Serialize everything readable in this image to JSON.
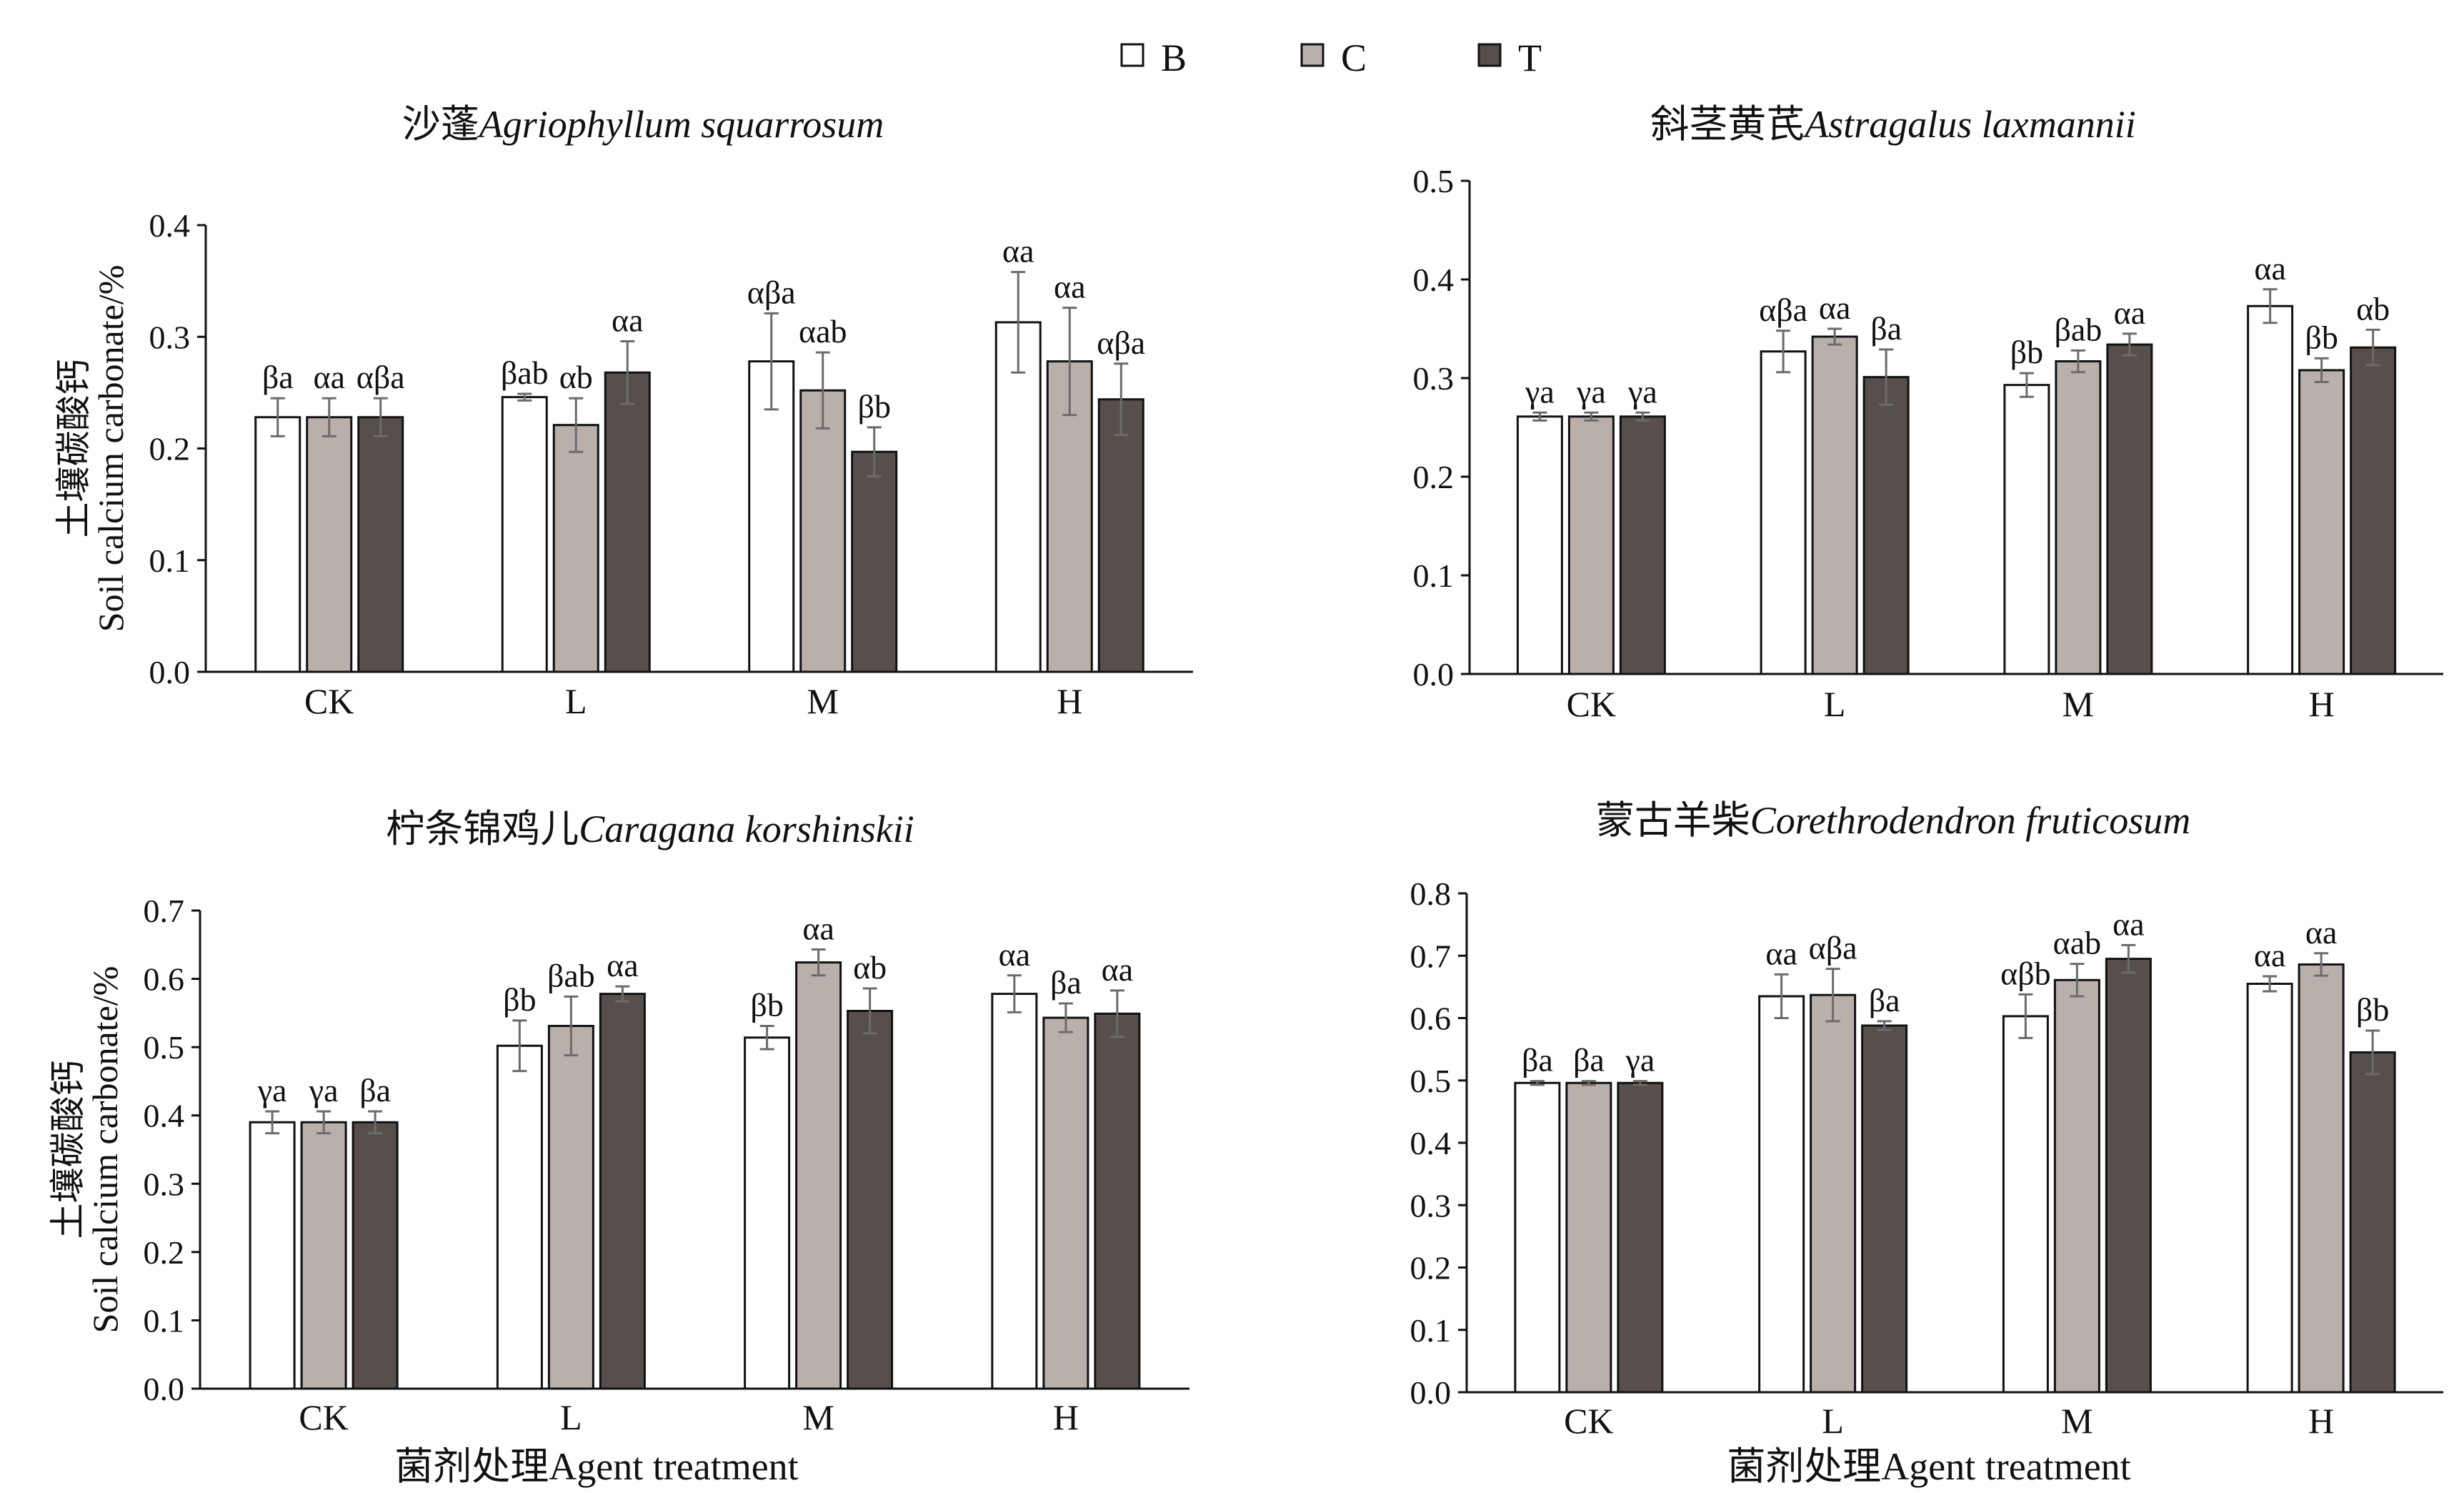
{
  "legend": [
    {
      "label": "B",
      "color": "#ffffff"
    },
    {
      "label": "C",
      "color": "#b9b0ac"
    },
    {
      "label": "T",
      "color": "#574f4c"
    }
  ],
  "x_axis_title": "菌剂处理Agent treatment",
  "y_axis_title_cn": "土壤碳酸钙",
  "y_axis_title_en": "Soil calcium carbonate/%",
  "chart_data": [
    {
      "type": "bar",
      "title_cn": "沙蓬",
      "title_latin": "Agriophyllum squarrosum",
      "categories": [
        "CK",
        "L",
        "M",
        "H"
      ],
      "ylim": [
        0,
        0.4
      ],
      "yticks": [
        "0.0",
        "0.1",
        "0.2",
        "0.3",
        "0.4"
      ],
      "series": [
        {
          "name": "B",
          "values": [
            0.228,
            0.246,
            0.278,
            0.313
          ],
          "errors": [
            0.017,
            0.003,
            0.043,
            0.045
          ],
          "labels": [
            "βa",
            "βab",
            "αβa",
            "αa"
          ]
        },
        {
          "name": "C",
          "values": [
            0.228,
            0.221,
            0.252,
            0.278
          ],
          "errors": [
            0.017,
            0.024,
            0.034,
            0.048
          ],
          "labels": [
            "αa",
            "αb",
            "αab",
            "αa"
          ]
        },
        {
          "name": "T",
          "values": [
            0.228,
            0.268,
            0.197,
            0.244
          ],
          "errors": [
            0.017,
            0.028,
            0.022,
            0.032
          ],
          "labels": [
            "αβa",
            "αa",
            "βb",
            "αβa"
          ]
        }
      ]
    },
    {
      "type": "bar",
      "title_cn": "斜茎黄芪",
      "title_latin": "Astragalus laxmannii",
      "categories": [
        "CK",
        "L",
        "M",
        "H"
      ],
      "ylim": [
        0,
        0.5
      ],
      "yticks": [
        "0.0",
        "0.1",
        "0.2",
        "0.3",
        "0.4",
        "0.5"
      ],
      "series": [
        {
          "name": "B",
          "values": [
            0.261,
            0.327,
            0.293,
            0.373
          ],
          "errors": [
            0.004,
            0.021,
            0.012,
            0.017
          ],
          "labels": [
            "γa",
            "αβa",
            "βb",
            "αa"
          ]
        },
        {
          "name": "C",
          "values": [
            0.261,
            0.342,
            0.317,
            0.308
          ],
          "errors": [
            0.004,
            0.008,
            0.011,
            0.012
          ],
          "labels": [
            "γa",
            "αa",
            "βab",
            "βb"
          ]
        },
        {
          "name": "T",
          "values": [
            0.261,
            0.301,
            0.334,
            0.331
          ],
          "errors": [
            0.004,
            0.028,
            0.011,
            0.018
          ],
          "labels": [
            "γa",
            "βa",
            "αa",
            "αb"
          ]
        }
      ]
    },
    {
      "type": "bar",
      "title_cn": "柠条锦鸡儿",
      "title_latin": "Caragana korshinskii",
      "categories": [
        "CK",
        "L",
        "M",
        "H"
      ],
      "ylim": [
        0,
        0.7
      ],
      "yticks": [
        "0.0",
        "0.1",
        "0.2",
        "0.3",
        "0.4",
        "0.5",
        "0.6",
        "0.7"
      ],
      "series": [
        {
          "name": "B",
          "values": [
            0.39,
            0.502,
            0.514,
            0.578
          ],
          "errors": [
            0.016,
            0.037,
            0.017,
            0.027
          ],
          "labels": [
            "γa",
            "βb",
            "βb",
            "αa"
          ]
        },
        {
          "name": "C",
          "values": [
            0.39,
            0.531,
            0.624,
            0.543
          ],
          "errors": [
            0.016,
            0.043,
            0.019,
            0.021
          ],
          "labels": [
            "γa",
            "βab",
            "αa",
            "βa"
          ]
        },
        {
          "name": "T",
          "values": [
            0.39,
            0.578,
            0.553,
            0.549
          ],
          "errors": [
            0.016,
            0.011,
            0.033,
            0.034
          ],
          "labels": [
            "βa",
            "αa",
            "αb",
            "αa"
          ]
        }
      ]
    },
    {
      "type": "bar",
      "title_cn": "蒙古羊柴",
      "title_latin": "Corethrodendron fruticosum",
      "categories": [
        "CK",
        "L",
        "M",
        "H"
      ],
      "ylim": [
        0,
        0.8
      ],
      "yticks": [
        "0.0",
        "0.1",
        "0.2",
        "0.3",
        "0.4",
        "0.5",
        "0.6",
        "0.7",
        "0.8"
      ],
      "series": [
        {
          "name": "B",
          "values": [
            0.496,
            0.635,
            0.603,
            0.655
          ],
          "errors": [
            0.003,
            0.035,
            0.035,
            0.012
          ],
          "labels": [
            "βa",
            "αa",
            "αβb",
            "αa"
          ]
        },
        {
          "name": "C",
          "values": [
            0.496,
            0.637,
            0.661,
            0.686
          ],
          "errors": [
            0.003,
            0.042,
            0.026,
            0.018
          ],
          "labels": [
            "βa",
            "αβa",
            "αab",
            "αa"
          ]
        },
        {
          "name": "T",
          "values": [
            0.496,
            0.588,
            0.695,
            0.545
          ],
          "errors": [
            0.003,
            0.007,
            0.022,
            0.035
          ],
          "labels": [
            "γa",
            "βa",
            "αa",
            "βb"
          ]
        }
      ]
    }
  ]
}
